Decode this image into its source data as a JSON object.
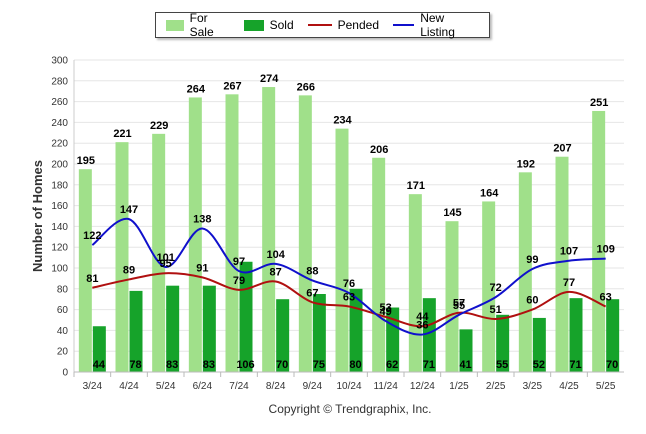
{
  "chart_data": {
    "type": "bar",
    "ylabel": "Number of Homes",
    "ylim": [
      0,
      300
    ],
    "yticks": [
      0,
      20,
      40,
      60,
      80,
      100,
      120,
      140,
      160,
      180,
      200,
      220,
      240,
      260,
      280,
      300
    ],
    "categories": [
      "3/24",
      "4/24",
      "5/24",
      "6/24",
      "7/24",
      "8/24",
      "9/24",
      "10/24",
      "11/24",
      "12/24",
      "1/25",
      "2/25",
      "3/25",
      "4/25",
      "5/25"
    ],
    "series": [
      {
        "name": "For Sale",
        "kind": "bar",
        "color": "#a0e08a",
        "values": [
          195,
          221,
          229,
          264,
          267,
          274,
          266,
          234,
          206,
          171,
          145,
          164,
          192,
          207,
          251
        ]
      },
      {
        "name": "Sold",
        "kind": "bar",
        "color": "#16a32a",
        "values": [
          44,
          78,
          83,
          83,
          106,
          70,
          75,
          80,
          62,
          71,
          41,
          55,
          52,
          71,
          70
        ]
      },
      {
        "name": "Pended",
        "kind": "line",
        "color": "#b01010",
        "values": [
          81,
          89,
          95,
          91,
          79,
          87,
          67,
          63,
          53,
          44,
          57,
          51,
          60,
          77,
          63
        ]
      },
      {
        "name": "New Listing",
        "kind": "line",
        "color": "#1010cc",
        "values": [
          122,
          147,
          101,
          138,
          97,
          104,
          88,
          76,
          49,
          36,
          55,
          72,
          99,
          107,
          109
        ]
      }
    ],
    "grid": true,
    "legend_position": "top"
  },
  "footer": {
    "copyright": "Copyright © Trendgraphix, Inc."
  }
}
